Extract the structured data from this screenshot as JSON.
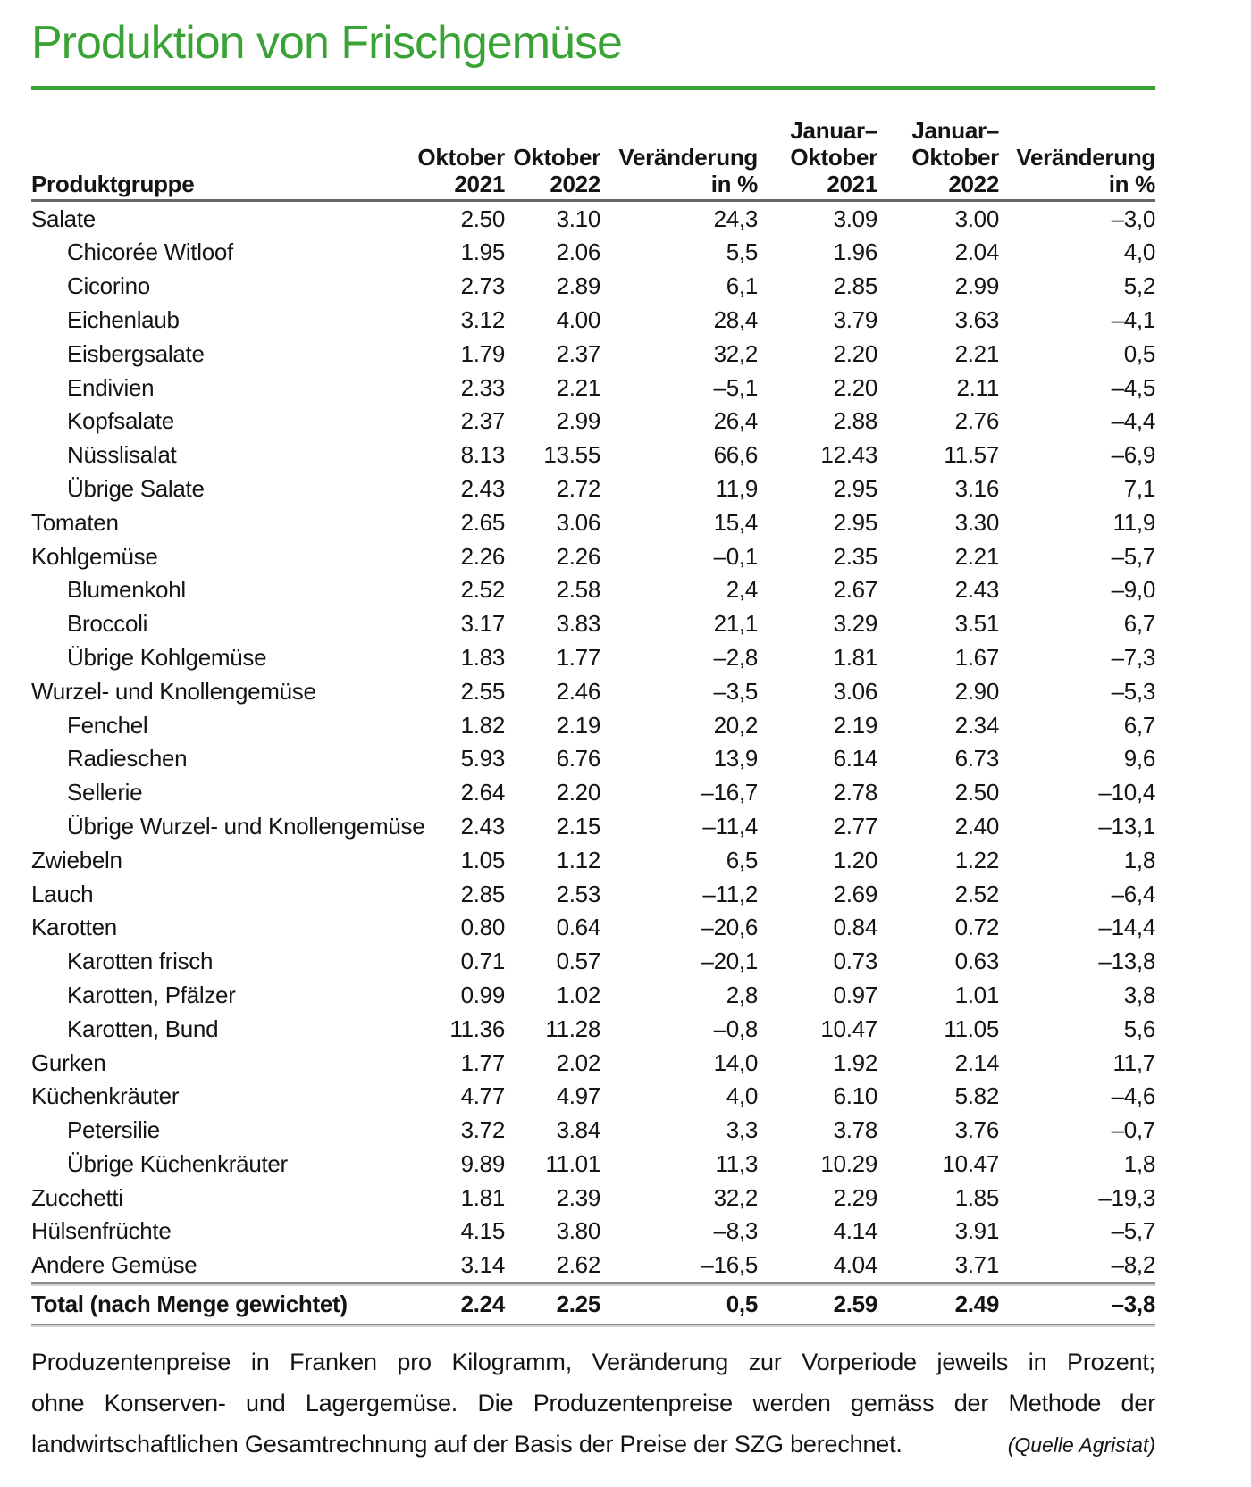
{
  "title": "Produktion von Frischgemüse",
  "accent_color": "#3aa336",
  "table": {
    "product_header": "Produktgruppe",
    "columns": [
      {
        "lines": [
          "Oktober",
          "2021"
        ]
      },
      {
        "lines": [
          "Oktober",
          "2022"
        ]
      },
      {
        "lines": [
          "Veränderung",
          "in %"
        ]
      },
      {
        "lines": [
          "Januar–",
          "Oktober",
          "2021"
        ]
      },
      {
        "lines": [
          "Januar–",
          "Oktober",
          "2022"
        ]
      },
      {
        "lines": [
          "Veränderung",
          "in %"
        ]
      }
    ],
    "rows": [
      {
        "label": "Salate",
        "indent": false,
        "values": [
          "2.50",
          "3.10",
          "24,3",
          "3.09",
          "3.00",
          "–3,0"
        ]
      },
      {
        "label": "Chicorée Witloof",
        "indent": true,
        "values": [
          "1.95",
          "2.06",
          "5,5",
          "1.96",
          "2.04",
          "4,0"
        ]
      },
      {
        "label": "Cicorino",
        "indent": true,
        "values": [
          "2.73",
          "2.89",
          "6,1",
          "2.85",
          "2.99",
          "5,2"
        ]
      },
      {
        "label": "Eichenlaub",
        "indent": true,
        "values": [
          "3.12",
          "4.00",
          "28,4",
          "3.79",
          "3.63",
          "–4,1"
        ]
      },
      {
        "label": "Eisbergsalate",
        "indent": true,
        "values": [
          "1.79",
          "2.37",
          "32,2",
          "2.20",
          "2.21",
          "0,5"
        ]
      },
      {
        "label": "Endivien",
        "indent": true,
        "values": [
          "2.33",
          "2.21",
          "–5,1",
          "2.20",
          "2.11",
          "–4,5"
        ]
      },
      {
        "label": "Kopfsalate",
        "indent": true,
        "values": [
          "2.37",
          "2.99",
          "26,4",
          "2.88",
          "2.76",
          "–4,4"
        ]
      },
      {
        "label": "Nüsslisalat",
        "indent": true,
        "values": [
          "8.13",
          "13.55",
          "66,6",
          "12.43",
          "11.57",
          "–6,9"
        ]
      },
      {
        "label": "Übrige Salate",
        "indent": true,
        "values": [
          "2.43",
          "2.72",
          "11,9",
          "2.95",
          "3.16",
          "7,1"
        ]
      },
      {
        "label": "Tomaten",
        "indent": false,
        "values": [
          "2.65",
          "3.06",
          "15,4",
          "2.95",
          "3.30",
          "11,9"
        ]
      },
      {
        "label": "Kohlgemüse",
        "indent": false,
        "values": [
          "2.26",
          "2.26",
          "–0,1",
          "2.35",
          "2.21",
          "–5,7"
        ]
      },
      {
        "label": "Blumenkohl",
        "indent": true,
        "values": [
          "2.52",
          "2.58",
          "2,4",
          "2.67",
          "2.43",
          "–9,0"
        ]
      },
      {
        "label": "Broccoli",
        "indent": true,
        "values": [
          "3.17",
          "3.83",
          "21,1",
          "3.29",
          "3.51",
          "6,7"
        ]
      },
      {
        "label": "Übrige Kohlgemüse",
        "indent": true,
        "values": [
          "1.83",
          "1.77",
          "–2,8",
          "1.81",
          "1.67",
          "–7,3"
        ]
      },
      {
        "label": "Wurzel- und Knollengemüse",
        "indent": false,
        "values": [
          "2.55",
          "2.46",
          "–3,5",
          "3.06",
          "2.90",
          "–5,3"
        ]
      },
      {
        "label": "Fenchel",
        "indent": true,
        "values": [
          "1.82",
          "2.19",
          "20,2",
          "2.19",
          "2.34",
          "6,7"
        ]
      },
      {
        "label": "Radieschen",
        "indent": true,
        "values": [
          "5.93",
          "6.76",
          "13,9",
          "6.14",
          "6.73",
          "9,6"
        ]
      },
      {
        "label": "Sellerie",
        "indent": true,
        "values": [
          "2.64",
          "2.20",
          "–16,7",
          "2.78",
          "2.50",
          "–10,4"
        ]
      },
      {
        "label": "Übrige Wurzel- und Knollengemüse",
        "indent": true,
        "values": [
          "2.43",
          "2.15",
          "–11,4",
          "2.77",
          "2.40",
          "–13,1"
        ]
      },
      {
        "label": "Zwiebeln",
        "indent": false,
        "values": [
          "1.05",
          "1.12",
          "6,5",
          "1.20",
          "1.22",
          "1,8"
        ]
      },
      {
        "label": "Lauch",
        "indent": false,
        "values": [
          "2.85",
          "2.53",
          "–11,2",
          "2.69",
          "2.52",
          "–6,4"
        ]
      },
      {
        "label": "Karotten",
        "indent": false,
        "values": [
          "0.80",
          "0.64",
          "–20,6",
          "0.84",
          "0.72",
          "–14,4"
        ]
      },
      {
        "label": "Karotten frisch",
        "indent": true,
        "values": [
          "0.71",
          "0.57",
          "–20,1",
          "0.73",
          "0.63",
          "–13,8"
        ]
      },
      {
        "label": "Karotten, Pfälzer",
        "indent": true,
        "values": [
          "0.99",
          "1.02",
          "2,8",
          "0.97",
          "1.01",
          "3,8"
        ]
      },
      {
        "label": "Karotten, Bund",
        "indent": true,
        "values": [
          "11.36",
          "11.28",
          "–0,8",
          "10.47",
          "11.05",
          "5,6"
        ]
      },
      {
        "label": "Gurken",
        "indent": false,
        "values": [
          "1.77",
          "2.02",
          "14,0",
          "1.92",
          "2.14",
          "11,7"
        ]
      },
      {
        "label": "Küchenkräuter",
        "indent": false,
        "values": [
          "4.77",
          "4.97",
          "4,0",
          "6.10",
          "5.82",
          "–4,6"
        ]
      },
      {
        "label": "Petersilie",
        "indent": true,
        "values": [
          "3.72",
          "3.84",
          "3,3",
          "3.78",
          "3.76",
          "–0,7"
        ]
      },
      {
        "label": "Übrige Küchenkräuter",
        "indent": true,
        "values": [
          "9.89",
          "11.01",
          "11,3",
          "10.29",
          "10.47",
          "1,8"
        ]
      },
      {
        "label": "Zucchetti",
        "indent": false,
        "values": [
          "1.81",
          "2.39",
          "32,2",
          "2.29",
          "1.85",
          "–19,3"
        ]
      },
      {
        "label": "Hülsenfrüchte",
        "indent": false,
        "values": [
          "4.15",
          "3.80",
          "–8,3",
          "4.14",
          "3.91",
          "–5,7"
        ]
      },
      {
        "label": "Andere Gemüse",
        "indent": false,
        "values": [
          "3.14",
          "2.62",
          "–16,5",
          "4.04",
          "3.71",
          "–8,2"
        ]
      }
    ],
    "total": {
      "label": "Total (nach Menge gewichtet)",
      "values": [
        "2.24",
        "2.25",
        "0,5",
        "2.59",
        "2.49",
        "–3,8"
      ]
    }
  },
  "footer": {
    "lines": [
      "Produzentenpreise in Franken pro Kilogramm, Veränderung zur Vorperiode jeweils in Prozent;",
      "ohne Konserven- und Lagergemüse. Die Produzentenpreise werden gemäss der Methode der",
      "landwirtschaftlichen Gesamtrechnung auf der Basis der Preise der SZG berechnet."
    ],
    "source": "(Quelle Agristat)"
  }
}
